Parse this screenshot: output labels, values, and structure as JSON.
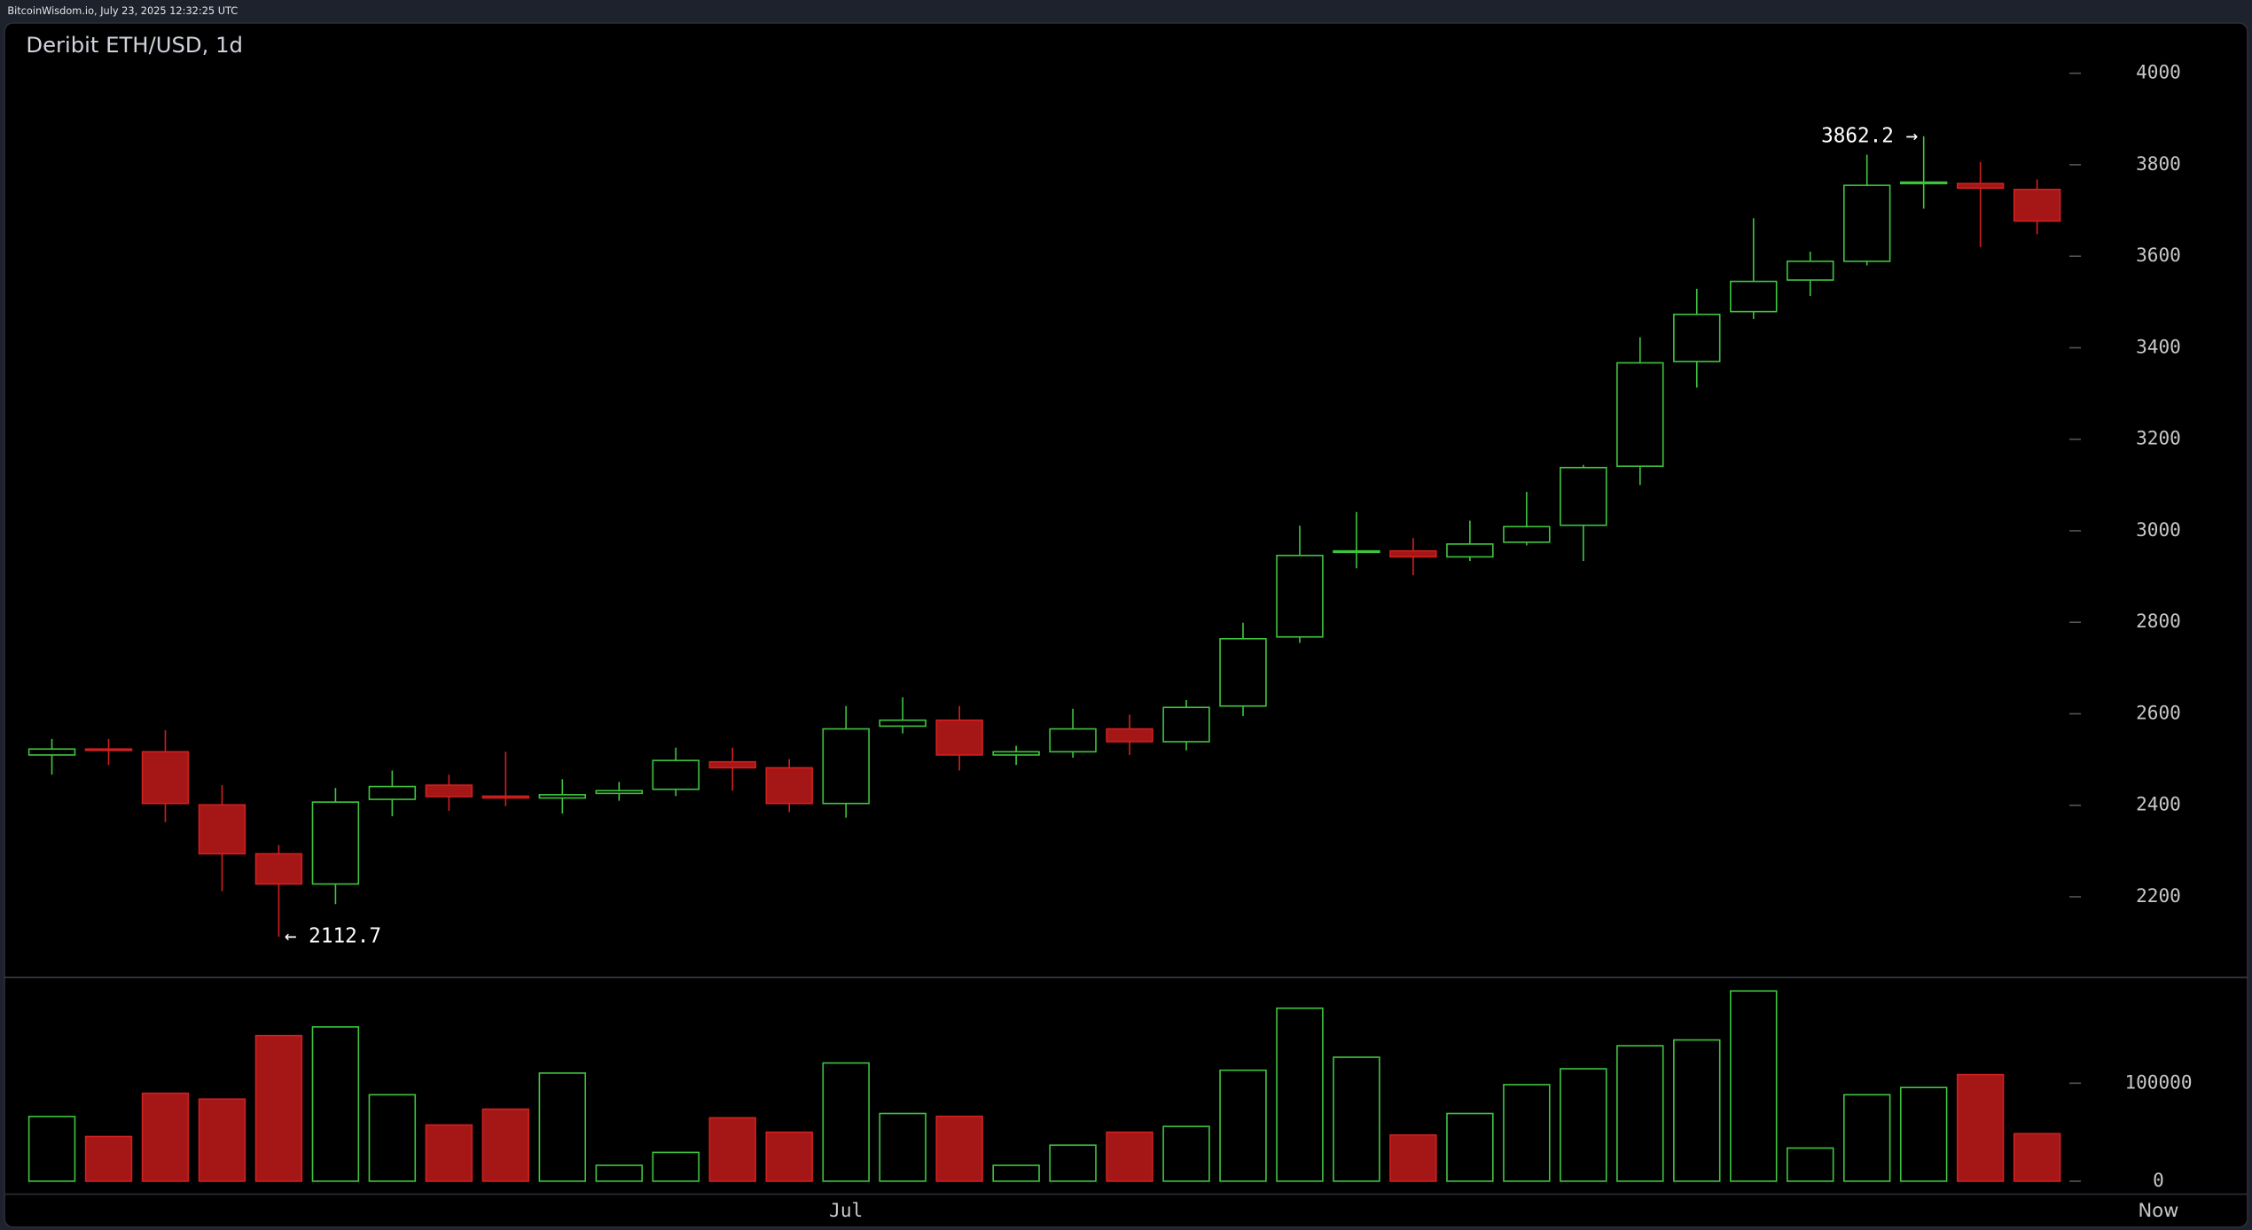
{
  "header": {
    "text": "BitcoinWisdom.io, July 23, 2025 12:32:25 UTC"
  },
  "chart_data": {
    "type": "candlestick",
    "title": "Deribit ETH/USD, 1d",
    "categories": [
      null,
      null,
      null,
      null,
      null,
      null,
      null,
      null,
      null,
      null,
      null,
      null,
      null,
      null,
      "Jul",
      null,
      null,
      null,
      null,
      null,
      null,
      null,
      null,
      null,
      null,
      null,
      null,
      null,
      null,
      null,
      null,
      null,
      null,
      null,
      null,
      null
    ],
    "end_label": "Now",
    "up_color": "#3fc43f",
    "down_color": "#a51616",
    "open": [
      2510,
      2523,
      2517,
      2401,
      2294,
      2228,
      2413,
      2444,
      2420,
      2416,
      2426,
      2435,
      2495,
      2482,
      2404,
      2573,
      2586,
      2510,
      2517,
      2567,
      2539,
      2617,
      2768,
      2953,
      2956,
      2943,
      2975,
      3012,
      3141,
      3370,
      3479,
      3548,
      3589,
      3759,
      3759,
      3746
    ],
    "high": [
      2545,
      2545,
      2564,
      2444,
      2313,
      2438,
      2476,
      2467,
      2517,
      2457,
      2451,
      2526,
      2526,
      2501,
      2617,
      2636,
      2617,
      2530,
      2611,
      2598,
      2630,
      2799,
      3011,
      3041,
      2984,
      3022,
      3085,
      3144,
      3423,
      3529,
      3683,
      3610,
      3822,
      3862.2,
      3806,
      3768
    ],
    "low": [
      2467,
      2488,
      2363,
      2212,
      2112.7,
      2184,
      2376,
      2388,
      2398,
      2382,
      2410,
      2420,
      2432,
      2385,
      2373,
      2557,
      2476,
      2488,
      2504,
      2510,
      2520,
      2595,
      2755,
      2918,
      2903,
      2934,
      2968,
      2934,
      3100,
      3313,
      3463,
      3513,
      3580,
      3704,
      3620,
      3648
    ],
    "close": [
      2523,
      2520,
      2404,
      2294,
      2228,
      2407,
      2441,
      2419,
      2416,
      2423,
      2432,
      2498,
      2482,
      2404,
      2567,
      2586,
      2510,
      2517,
      2567,
      2539,
      2614,
      2764,
      2946,
      2956,
      2943,
      2971,
      3009,
      3138,
      3367,
      3473,
      3545,
      3589,
      3755,
      3762,
      3749,
      3677
    ],
    "volume": [
      66000,
      45600,
      89700,
      83800,
      148500,
      157400,
      88200,
      57400,
      73500,
      110300,
      16200,
      29400,
      64700,
      50000,
      120600,
      69100,
      66200,
      16200,
      36800,
      50000,
      55900,
      113200,
      176500,
      126500,
      47100,
      69100,
      98500,
      114700,
      138200,
      144100,
      194100,
      33800,
      88200,
      95600,
      108800,
      48500
    ],
    "high_label": "3862.2 →",
    "low_label": "← 2112.7",
    "ylim": [
      2027,
      4113
    ],
    "yticks": [
      2200,
      2400,
      2600,
      2800,
      3000,
      3200,
      3400,
      3600,
      3800,
      4000
    ],
    "volume_ylim": [
      0,
      205000
    ],
    "volume_yticks": [
      0,
      100000
    ]
  }
}
